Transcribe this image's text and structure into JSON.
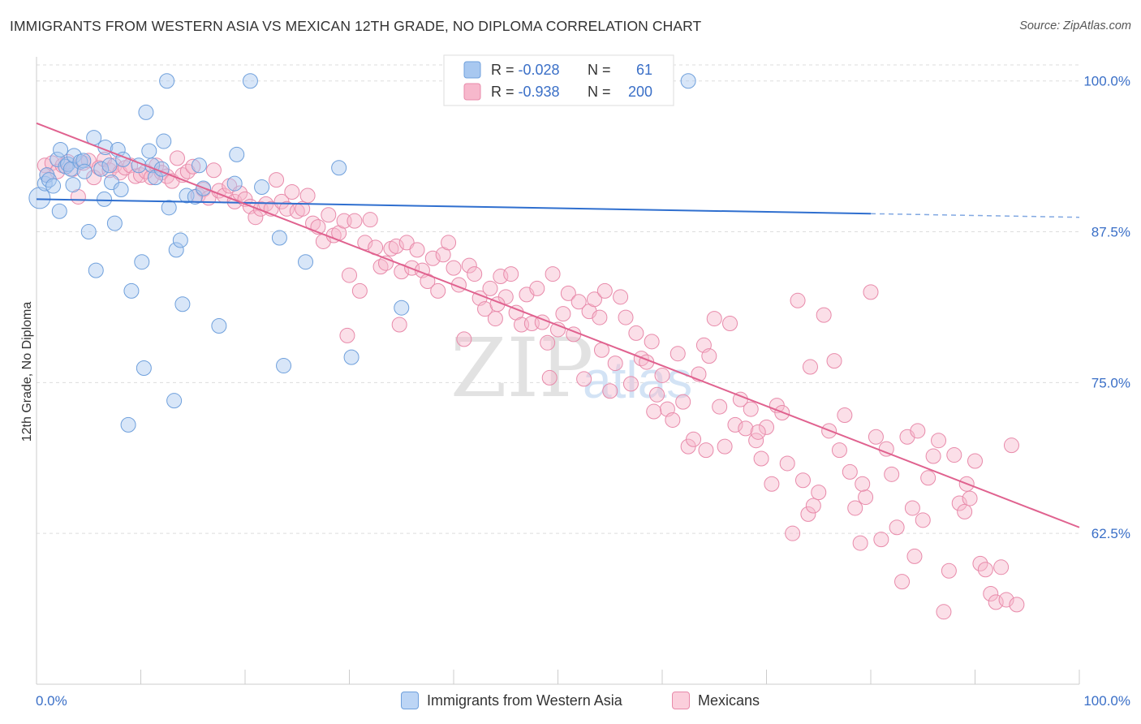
{
  "title": "IMMIGRANTS FROM WESTERN ASIA VS MEXICAN 12TH GRADE, NO DIPLOMA CORRELATION CHART",
  "source": "Source: ZipAtlas.com",
  "watermark": {
    "zip": "ZIP",
    "atlas": "atlas"
  },
  "colors": {
    "blue_fill": "#a8c8f0",
    "blue_stroke": "#6fa0dc",
    "blue_line": "#2f6fcf",
    "pink_fill": "#f7b8cc",
    "pink_stroke": "#e88aaa",
    "pink_line": "#e0628f",
    "axis_label": "#3a6fc7",
    "grid": "#dddddd"
  },
  "legend_top": {
    "rows": [
      {
        "r_label": "R = ",
        "r_value": "-0.028",
        "n_label": "N = ",
        "n_value": "61"
      },
      {
        "r_label": "R = ",
        "r_value": "-0.938",
        "n_label": "N = ",
        "n_value": "200"
      }
    ]
  },
  "legend_bottom": {
    "items": [
      {
        "label": "Immigrants from Western Asia"
      },
      {
        "label": "Mexicans"
      }
    ]
  },
  "chart_data": {
    "type": "scatter",
    "xlabel": "",
    "ylabel": "12th Grade, No Diploma",
    "xlim": [
      0,
      100
    ],
    "ylim": [
      50,
      102
    ],
    "x_tick_labels": [
      "0.0%",
      "100.0%"
    ],
    "y_ticks": [
      62.5,
      75.0,
      87.5,
      100.0
    ],
    "y_tick_labels": [
      "62.5%",
      "75.0%",
      "87.5%",
      "100.0%"
    ],
    "grid": true,
    "legend_position": "top-center",
    "series": [
      {
        "name": "Immigrants from Western Asia",
        "color": "#a8c8f0",
        "R": -0.028,
        "N": 61,
        "trend": {
          "x0": 0,
          "y0": 90.2,
          "x1": 80,
          "y1": 89.0,
          "dashed_to_x": 100,
          "dashed_to_y": 88.7
        },
        "points": [
          [
            0.3,
            90.3
          ],
          [
            0.8,
            91.5
          ],
          [
            1,
            92.2
          ],
          [
            1.2,
            91.8
          ],
          [
            1.6,
            91.3
          ],
          [
            2,
            93.5
          ],
          [
            2.2,
            89.2
          ],
          [
            2.3,
            94.3
          ],
          [
            2.8,
            92.9
          ],
          [
            3,
            93.1
          ],
          [
            3.3,
            92.7
          ],
          [
            3.5,
            91.4
          ],
          [
            3.6,
            93.8
          ],
          [
            4.2,
            93.3
          ],
          [
            4.5,
            93.4
          ],
          [
            4.6,
            92.5
          ],
          [
            5,
            87.5
          ],
          [
            5.5,
            95.3
          ],
          [
            5.7,
            84.3
          ],
          [
            6.2,
            92.7
          ],
          [
            6.5,
            90.2
          ],
          [
            6.6,
            94.5
          ],
          [
            7,
            93.0
          ],
          [
            7.2,
            91.6
          ],
          [
            7.5,
            88.2
          ],
          [
            7.8,
            94.3
          ],
          [
            8.1,
            91.0
          ],
          [
            8.3,
            93.5
          ],
          [
            8.8,
            71.5
          ],
          [
            9.1,
            82.6
          ],
          [
            9.8,
            93.0
          ],
          [
            10.1,
            85.0
          ],
          [
            10.3,
            76.2
          ],
          [
            10.5,
            97.4
          ],
          [
            10.8,
            94.2
          ],
          [
            11.1,
            93.0
          ],
          [
            11.4,
            92.0
          ],
          [
            12,
            92.7
          ],
          [
            12.2,
            95.0
          ],
          [
            12.5,
            100.0
          ],
          [
            12.7,
            89.5
          ],
          [
            13.2,
            73.5
          ],
          [
            13.4,
            86.0
          ],
          [
            13.8,
            86.8
          ],
          [
            14.0,
            81.5
          ],
          [
            14.4,
            90.5
          ],
          [
            15.2,
            90.4
          ],
          [
            15.6,
            93.0
          ],
          [
            16.0,
            91.1
          ],
          [
            17.5,
            79.7
          ],
          [
            19.0,
            91.5
          ],
          [
            19.2,
            93.9
          ],
          [
            20.5,
            100.0
          ],
          [
            21.6,
            91.2
          ],
          [
            23.3,
            87.0
          ],
          [
            23.7,
            76.4
          ],
          [
            25.8,
            85.0
          ],
          [
            29,
            92.8
          ],
          [
            30.2,
            77.1
          ],
          [
            35,
            81.2
          ],
          [
            62.5,
            100.0
          ]
        ]
      },
      {
        "name": "Mexicans",
        "color": "#f7b8cc",
        "R": -0.938,
        "N": 200,
        "trend": {
          "x0": 0,
          "y0": 96.5,
          "x1": 100,
          "y1": 63.0
        },
        "points": [
          [
            0.8,
            93.0
          ],
          [
            1.0,
            92.2
          ],
          [
            1.5,
            93.2
          ],
          [
            2,
            92.5
          ],
          [
            2.5,
            93.0
          ],
          [
            3,
            93.3
          ],
          [
            3.5,
            92.7
          ],
          [
            4,
            90.4
          ],
          [
            4.5,
            93.2
          ],
          [
            5,
            93.4
          ],
          [
            5.5,
            92.0
          ],
          [
            6,
            92.8
          ],
          [
            6.5,
            93.5
          ],
          [
            7,
            92.6
          ],
          [
            7.5,
            93.0
          ],
          [
            8,
            92.4
          ],
          [
            8.5,
            92.8
          ],
          [
            9,
            93.0
          ],
          [
            9.5,
            92.1
          ],
          [
            10,
            92.2
          ],
          [
            10.5,
            92.5
          ],
          [
            11,
            92.0
          ],
          [
            11.5,
            93.0
          ],
          [
            12,
            92.4
          ],
          [
            12.5,
            92.1
          ],
          [
            13,
            91.7
          ],
          [
            13.5,
            93.6
          ],
          [
            14,
            92.2
          ],
          [
            14.5,
            92.5
          ],
          [
            15,
            92.9
          ],
          [
            15.5,
            90.5
          ],
          [
            16,
            91.0
          ],
          [
            16.5,
            90.3
          ],
          [
            17,
            92.6
          ],
          [
            17.5,
            90.9
          ],
          [
            18,
            90.5
          ],
          [
            18.5,
            91.3
          ],
          [
            19,
            90.0
          ],
          [
            19.5,
            90.7
          ],
          [
            20,
            90.2
          ],
          [
            20.5,
            89.6
          ],
          [
            21,
            88.7
          ],
          [
            21.5,
            89.4
          ],
          [
            22,
            89.8
          ],
          [
            22.5,
            89.4
          ],
          [
            23,
            91.8
          ],
          [
            23.5,
            90.0
          ],
          [
            24,
            89.4
          ],
          [
            24.5,
            90.8
          ],
          [
            25,
            89.2
          ],
          [
            25.5,
            89.4
          ],
          [
            26,
            90.5
          ],
          [
            26.5,
            88.2
          ],
          [
            27,
            87.9
          ],
          [
            27.5,
            86.7
          ],
          [
            28,
            88.9
          ],
          [
            28.5,
            87.2
          ],
          [
            29,
            87.4
          ],
          [
            29.5,
            88.4
          ],
          [
            30,
            83.9
          ],
          [
            30.5,
            88.4
          ],
          [
            31,
            82.6
          ],
          [
            31.5,
            86.6
          ],
          [
            32,
            88.5
          ],
          [
            32.5,
            86.2
          ],
          [
            33,
            84.6
          ],
          [
            33.5,
            84.9
          ],
          [
            34,
            86.1
          ],
          [
            34.5,
            86.3
          ],
          [
            35,
            84.2
          ],
          [
            35.5,
            86.6
          ],
          [
            36,
            84.5
          ],
          [
            36.5,
            86.0
          ],
          [
            37,
            84.3
          ],
          [
            37.5,
            83.4
          ],
          [
            38,
            85.3
          ],
          [
            38.5,
            82.6
          ],
          [
            39,
            85.6
          ],
          [
            39.5,
            86.6
          ],
          [
            40,
            84.5
          ],
          [
            40.5,
            83.1
          ],
          [
            41,
            78.6
          ],
          [
            41.5,
            84.7
          ],
          [
            42,
            84.0
          ],
          [
            42.5,
            82.0
          ],
          [
            43,
            81.1
          ],
          [
            43.5,
            82.8
          ],
          [
            44,
            80.3
          ],
          [
            44.5,
            83.8
          ],
          [
            45,
            82.1
          ],
          [
            45.5,
            84.0
          ],
          [
            46,
            80.8
          ],
          [
            46.5,
            79.8
          ],
          [
            47,
            82.3
          ],
          [
            47.5,
            79.9
          ],
          [
            48,
            82.8
          ],
          [
            48.5,
            80.0
          ],
          [
            49,
            78.3
          ],
          [
            49.5,
            84.0
          ],
          [
            50,
            79.4
          ],
          [
            50.5,
            80.7
          ],
          [
            51,
            82.4
          ],
          [
            51.5,
            79.0
          ],
          [
            52,
            81.7
          ],
          [
            52.5,
            75.3
          ],
          [
            53,
            80.9
          ],
          [
            53.5,
            81.9
          ],
          [
            54,
            80.4
          ],
          [
            54.5,
            82.6
          ],
          [
            55,
            74.3
          ],
          [
            55.5,
            76.6
          ],
          [
            56,
            82.1
          ],
          [
            56.5,
            80.4
          ],
          [
            57,
            74.9
          ],
          [
            57.5,
            79.1
          ],
          [
            58,
            77.0
          ],
          [
            58.5,
            76.7
          ],
          [
            59,
            78.4
          ],
          [
            59.5,
            74.0
          ],
          [
            60,
            75.6
          ],
          [
            60.5,
            72.8
          ],
          [
            61,
            71.9
          ],
          [
            61.5,
            77.4
          ],
          [
            62,
            73.4
          ],
          [
            62.5,
            69.7
          ],
          [
            63,
            70.3
          ],
          [
            63.5,
            75.7
          ],
          [
            64,
            78.1
          ],
          [
            64.5,
            77.2
          ],
          [
            65,
            80.3
          ],
          [
            65.5,
            73.0
          ],
          [
            66,
            69.7
          ],
          [
            66.5,
            79.9
          ],
          [
            67,
            71.5
          ],
          [
            67.5,
            73.6
          ],
          [
            68,
            71.2
          ],
          [
            68.5,
            72.8
          ],
          [
            69,
            70.2
          ],
          [
            69.5,
            68.7
          ],
          [
            70,
            71.3
          ],
          [
            70.5,
            66.6
          ],
          [
            71,
            73.1
          ],
          [
            71.5,
            72.5
          ],
          [
            72,
            68.3
          ],
          [
            72.5,
            62.5
          ],
          [
            73,
            81.8
          ],
          [
            73.5,
            66.9
          ],
          [
            74,
            64.1
          ],
          [
            74.5,
            64.8
          ],
          [
            75,
            65.9
          ],
          [
            75.5,
            80.6
          ],
          [
            76,
            71.0
          ],
          [
            76.5,
            76.8
          ],
          [
            77,
            69.4
          ],
          [
            77.5,
            72.3
          ],
          [
            78,
            67.6
          ],
          [
            78.5,
            64.6
          ],
          [
            79,
            61.7
          ],
          [
            79.5,
            65.5
          ],
          [
            80,
            82.5
          ],
          [
            80.5,
            70.5
          ],
          [
            81,
            62.0
          ],
          [
            81.5,
            69.5
          ],
          [
            82,
            67.4
          ],
          [
            82.5,
            63.0
          ],
          [
            83,
            58.5
          ],
          [
            83.5,
            70.5
          ],
          [
            84,
            64.6
          ],
          [
            84.5,
            71.0
          ],
          [
            85,
            63.6
          ],
          [
            85.5,
            67.1
          ],
          [
            86,
            68.9
          ],
          [
            86.5,
            70.2
          ],
          [
            87,
            56.0
          ],
          [
            87.5,
            59.4
          ],
          [
            88,
            69.0
          ],
          [
            88.5,
            65.0
          ],
          [
            89,
            64.3
          ],
          [
            89.5,
            65.4
          ],
          [
            90,
            68.5
          ],
          [
            90.5,
            60.0
          ],
          [
            91,
            59.5
          ],
          [
            91.5,
            57.5
          ],
          [
            92,
            56.8
          ],
          [
            92.5,
            59.7
          ],
          [
            93,
            57.0
          ],
          [
            93.5,
            69.8
          ],
          [
            94,
            56.6
          ],
          [
            29.8,
            78.9
          ],
          [
            34.8,
            79.8
          ],
          [
            44.2,
            81.5
          ],
          [
            49.2,
            75.4
          ],
          [
            54.2,
            77.7
          ],
          [
            59.2,
            72.6
          ],
          [
            64.2,
            69.4
          ],
          [
            69.2,
            70.9
          ],
          [
            74.2,
            76.3
          ],
          [
            79.2,
            66.6
          ],
          [
            84.2,
            60.6
          ],
          [
            89.2,
            66.6
          ]
        ]
      }
    ]
  }
}
